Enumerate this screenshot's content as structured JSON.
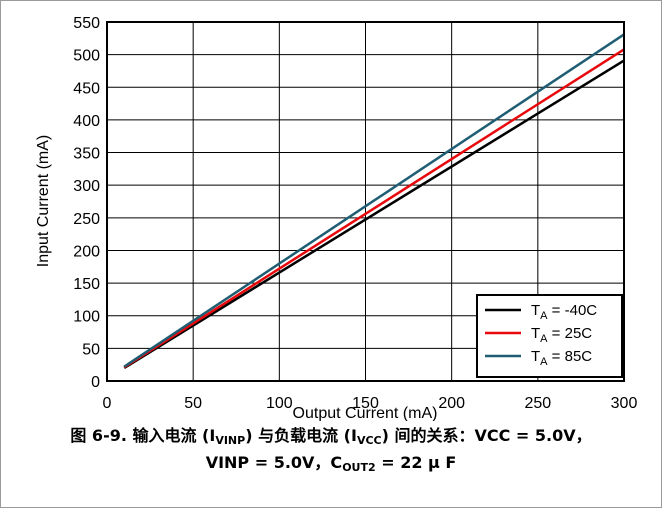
{
  "chart_data": {
    "type": "line",
    "xlabel": "Output Current (mA)",
    "ylabel": "Input Current (mA)",
    "xlim": [
      0,
      300
    ],
    "ylim": [
      0,
      550
    ],
    "xticks": [
      0,
      50,
      100,
      150,
      200,
      250,
      300
    ],
    "yticks": [
      0,
      50,
      100,
      150,
      200,
      250,
      300,
      350,
      400,
      450,
      500,
      550
    ],
    "grid": true,
    "legend_position": "bottom-right",
    "series": [
      {
        "name": "-40C",
        "prefix": "T",
        "sub": "A",
        "suffix": " = -40C",
        "color": "#000000",
        "x": [
          10,
          300
        ],
        "y": [
          20,
          491
        ]
      },
      {
        "name": "25C",
        "prefix": "T",
        "sub": "A",
        "suffix": " = 25C",
        "color": "#e8090d",
        "x": [
          10,
          300
        ],
        "y": [
          21,
          508
        ]
      },
      {
        "name": "85C",
        "prefix": "T",
        "sub": "A",
        "suffix": " = 85C",
        "color": "#1f5d73",
        "x": [
          10,
          300
        ],
        "y": [
          22,
          531
        ]
      }
    ]
  },
  "caption": {
    "line1_a": "图 6-9. 输入电流 (I",
    "line1_sub1": "VINP",
    "line1_b": ") 与负载电流 (I",
    "line1_sub2": "VCC",
    "line1_c": ") 间的关系：VCC = 5.0V，",
    "line2_a": "VINP = 5.0V，C",
    "line2_sub": "OUT2",
    "line2_b": " = 22 μ F"
  }
}
